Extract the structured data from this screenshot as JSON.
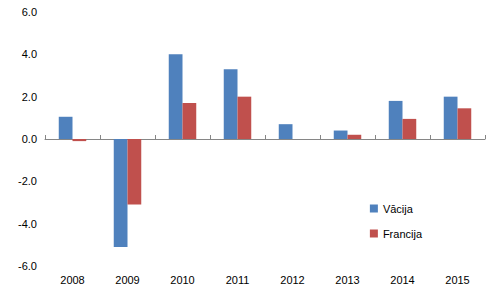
{
  "chart_data": {
    "type": "bar",
    "categories": [
      "2008",
      "2009",
      "2010",
      "2011",
      "2012",
      "2013",
      "2014",
      "2015"
    ],
    "series": [
      {
        "name": "Vācija",
        "color": "#4f81bd",
        "values": [
          1.05,
          -5.1,
          4.0,
          3.3,
          0.7,
          0.4,
          1.8,
          2.0
        ]
      },
      {
        "name": "Francija",
        "color": "#c0504d",
        "values": [
          -0.1,
          -3.1,
          1.7,
          2.0,
          0.0,
          0.2,
          0.95,
          1.45
        ]
      }
    ],
    "ylim": [
      -6,
      6
    ],
    "yticks": [
      {
        "value": -6,
        "label": "-6.0"
      },
      {
        "value": -4,
        "label": "-4.0"
      },
      {
        "value": -2,
        "label": "-2.0"
      },
      {
        "value": 0,
        "label": "0.0"
      },
      {
        "value": 2,
        "label": "2.0"
      },
      {
        "value": 4,
        "label": "4.0"
      },
      {
        "value": 6,
        "label": "6.0"
      }
    ],
    "grid": false,
    "legend": "bottom-right"
  }
}
